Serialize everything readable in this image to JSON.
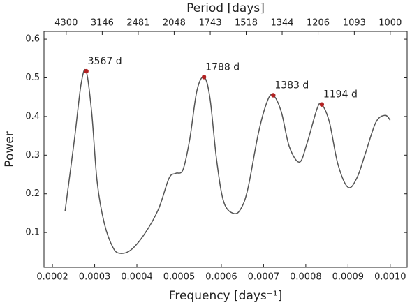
{
  "chart_data": {
    "type": "line",
    "xlabel": "Frequency [days⁻¹]",
    "ylabel": "Power",
    "x2label": "Period [days]",
    "xlim": [
      0.00018,
      0.00104
    ],
    "ylim": [
      0.01,
      0.62
    ],
    "xticks": [
      0.0002,
      0.0003,
      0.0004,
      0.0005,
      0.0006,
      0.0007,
      0.0008,
      0.0009,
      {
        "value": 0.001,
        "label": "0.0010"
      }
    ],
    "yticks": [
      0.1,
      0.2,
      0.3,
      0.4,
      0.5,
      0.6
    ],
    "x2ticks": [
      {
        "value": 0.0002326,
        "label": "4300"
      },
      {
        "value": 0.0003179,
        "label": "3146"
      },
      {
        "value": 0.0004031,
        "label": "2481"
      },
      {
        "value": 0.0004883,
        "label": "2048"
      },
      {
        "value": 0.0005737,
        "label": "1743"
      },
      {
        "value": 0.0006588,
        "label": "1518"
      },
      {
        "value": 0.000744,
        "label": "1344"
      },
      {
        "value": 0.0008292,
        "label": "1206"
      },
      {
        "value": 0.0009149,
        "label": "1093"
      },
      {
        "value": 0.001,
        "label": "1000"
      }
    ],
    "color": "#555555",
    "x": [
      0.00023,
      0.000252,
      0.000268,
      0.00028,
      0.000293,
      0.000306,
      0.000323,
      0.000344,
      0.000361,
      0.000386,
      0.000418,
      0.000451,
      0.000476,
      0.000492,
      0.000509,
      0.000525,
      0.000542,
      0.000559,
      0.000573,
      0.000589,
      0.000606,
      0.00063,
      0.000647,
      0.000663,
      0.000688,
      0.000709,
      0.000723,
      0.000742,
      0.000761,
      0.000785,
      0.000803,
      0.000827,
      0.000838,
      0.000856,
      0.000876,
      0.0009,
      0.000921,
      0.000941,
      0.000966,
      0.000988,
      0.001
    ],
    "values": [
      0.156,
      0.34,
      0.485,
      0.517,
      0.41,
      0.23,
      0.123,
      0.06,
      0.046,
      0.055,
      0.096,
      0.16,
      0.24,
      0.253,
      0.262,
      0.34,
      0.466,
      0.502,
      0.448,
      0.286,
      0.178,
      0.149,
      0.163,
      0.214,
      0.358,
      0.44,
      0.455,
      0.412,
      0.322,
      0.282,
      0.331,
      0.421,
      0.431,
      0.385,
      0.277,
      0.217,
      0.241,
      0.304,
      0.385,
      0.403,
      0.39
    ],
    "peaks": {
      "color": "#b22222",
      "x": [
        0.0002803,
        0.000559,
        0.000723,
        0.000838
      ],
      "values": [
        0.517,
        0.502,
        0.455,
        0.431
      ],
      "labels": [
        "3567 d",
        "1788 d",
        "1383 d",
        "1194 d"
      ]
    }
  }
}
